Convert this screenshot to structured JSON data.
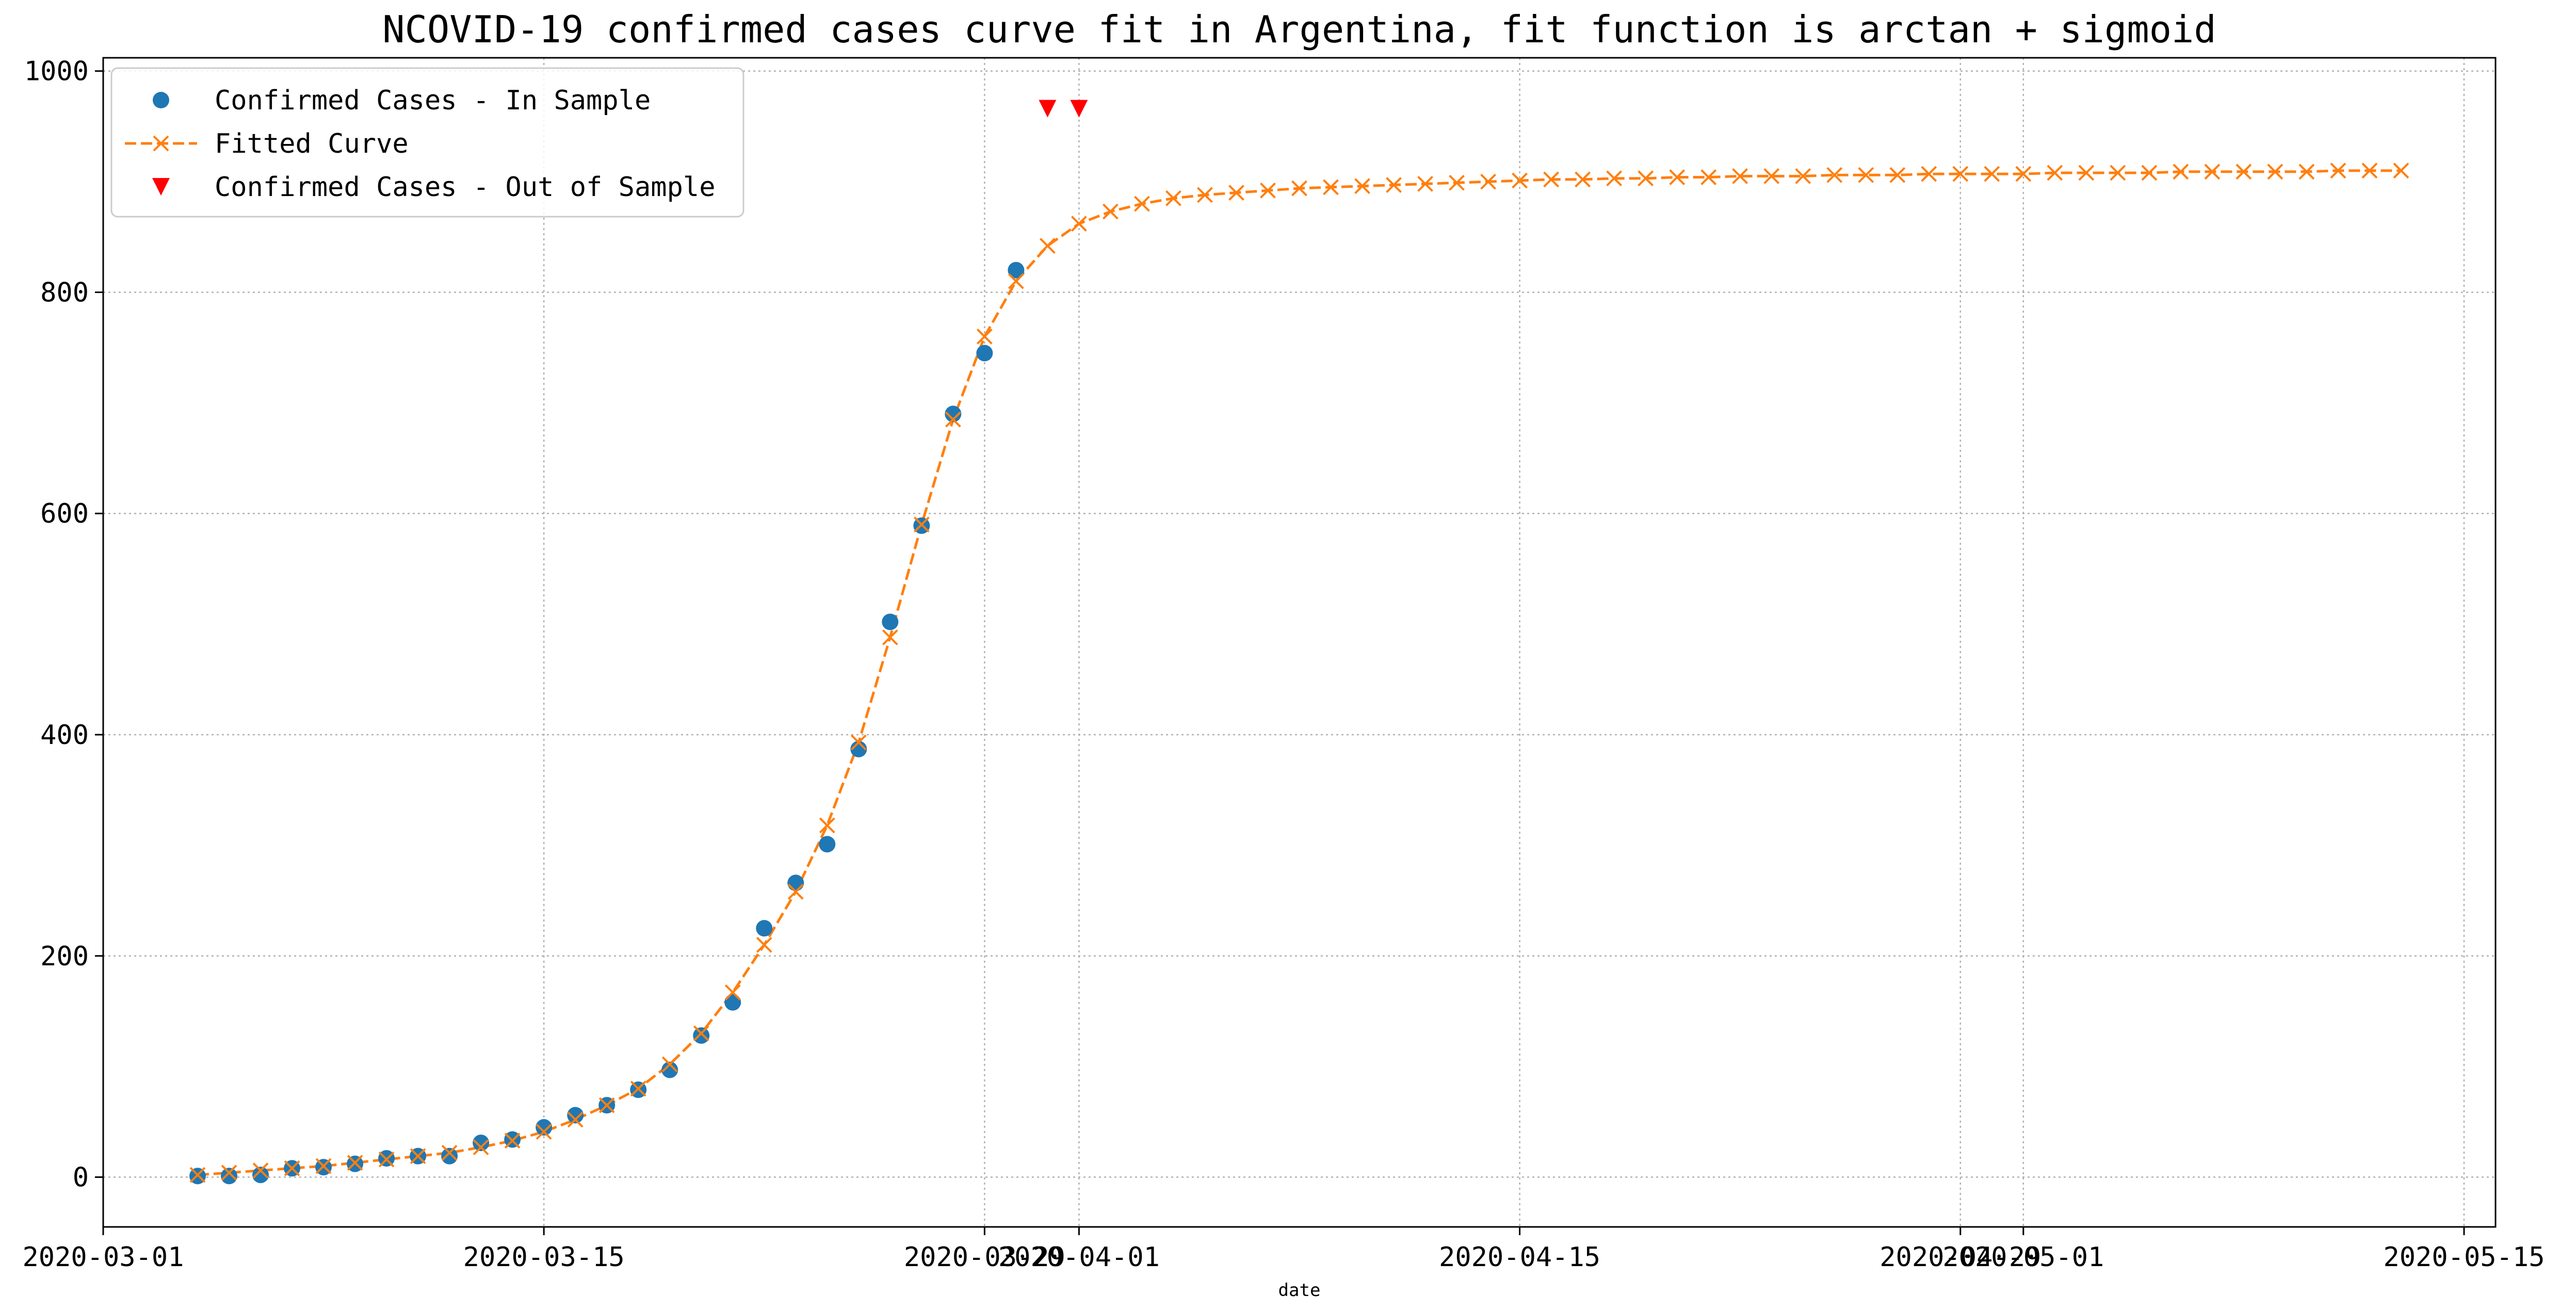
{
  "colors": {
    "in_sample": "#1f77b4",
    "fitted": "#ff7f0e",
    "out_of_sample": "#ff0000",
    "grid": "#b0b0b0",
    "axes": "#000000"
  },
  "chart_data": {
    "type": "scatter",
    "title": "NCOVID-19 confirmed cases curve fit in Argentina, fit function is arctan + sigmoid",
    "xlabel": "date",
    "ylabel": "",
    "x_axis_type": "date",
    "xlim": [
      "2020-03-01",
      "2020-05-16"
    ],
    "ylim": [
      -45,
      1012
    ],
    "grid": true,
    "legend_position": "upper-left",
    "x_ticks": [
      "2020-03-01",
      "2020-03-15",
      "2020-03-29",
      "2020-04-01",
      "2020-04-15",
      "2020-04-29",
      "2020-05-01",
      "2020-05-15"
    ],
    "x_tick_labels": [
      "2020-03-01",
      "2020-03-15",
      "2020-03-29",
      "2020-04-01",
      "2020-04-15",
      "2020-04-29",
      "2020-05-01",
      "2020-05-15"
    ],
    "y_ticks": [
      0,
      200,
      400,
      600,
      800,
      1000
    ],
    "y_tick_labels": [
      "0",
      "200",
      "400",
      "600",
      "800",
      "1000"
    ],
    "series": [
      {
        "name": "Confirmed Cases - In Sample",
        "marker": "circle",
        "color": "#1f77b4",
        "x": [
          "2020-03-04",
          "2020-03-05",
          "2020-03-06",
          "2020-03-07",
          "2020-03-08",
          "2020-03-09",
          "2020-03-10",
          "2020-03-11",
          "2020-03-12",
          "2020-03-13",
          "2020-03-14",
          "2020-03-15",
          "2020-03-16",
          "2020-03-17",
          "2020-03-18",
          "2020-03-19",
          "2020-03-20",
          "2020-03-21",
          "2020-03-22",
          "2020-03-23",
          "2020-03-24",
          "2020-03-25",
          "2020-03-26",
          "2020-03-27",
          "2020-03-28",
          "2020-03-29",
          "2020-03-30",
          "2020-03-31"
        ],
        "y": [
          1,
          1,
          2,
          8,
          9,
          12,
          17,
          19,
          19,
          31,
          34,
          45,
          56,
          65,
          79,
          97,
          128,
          158,
          225,
          266,
          301,
          387,
          502,
          589,
          690,
          745,
          820,
          null
        ]
      },
      {
        "name": "Fitted Curve",
        "marker": "x",
        "line_style": "dashed",
        "color": "#ff7f0e",
        "x": [
          "2020-03-04",
          "2020-03-05",
          "2020-03-06",
          "2020-03-07",
          "2020-03-08",
          "2020-03-09",
          "2020-03-10",
          "2020-03-11",
          "2020-03-12",
          "2020-03-13",
          "2020-03-14",
          "2020-03-15",
          "2020-03-16",
          "2020-03-17",
          "2020-03-18",
          "2020-03-19",
          "2020-03-20",
          "2020-03-21",
          "2020-03-22",
          "2020-03-23",
          "2020-03-24",
          "2020-03-25",
          "2020-03-26",
          "2020-03-27",
          "2020-03-28",
          "2020-03-29",
          "2020-03-30",
          "2020-03-31",
          "2020-04-01",
          "2020-04-02",
          "2020-04-03",
          "2020-04-04",
          "2020-04-05",
          "2020-04-06",
          "2020-04-07",
          "2020-04-08",
          "2020-04-09",
          "2020-04-10",
          "2020-04-11",
          "2020-04-12",
          "2020-04-13",
          "2020-04-14",
          "2020-04-15",
          "2020-04-16",
          "2020-04-17",
          "2020-04-18",
          "2020-04-19",
          "2020-04-20",
          "2020-04-21",
          "2020-04-22",
          "2020-04-23",
          "2020-04-24",
          "2020-04-25",
          "2020-04-26",
          "2020-04-27",
          "2020-04-28",
          "2020-04-29",
          "2020-04-30",
          "2020-05-01",
          "2020-05-02",
          "2020-05-03",
          "2020-05-04",
          "2020-05-05",
          "2020-05-06",
          "2020-05-07",
          "2020-05-08",
          "2020-05-09",
          "2020-05-10",
          "2020-05-11",
          "2020-05-12",
          "2020-05-13"
        ],
        "y": [
          2,
          4,
          6,
          8,
          10,
          13,
          16,
          19,
          22,
          27,
          33,
          41,
          52,
          65,
          80,
          102,
          130,
          167,
          210,
          258,
          318,
          393,
          488,
          590,
          685,
          760,
          810,
          842,
          862,
          873,
          880,
          885,
          888,
          890,
          892,
          894,
          895,
          896,
          897,
          898,
          899,
          900,
          901,
          902,
          902,
          903,
          903,
          904,
          904,
          905,
          905,
          905,
          906,
          906,
          906,
          907,
          907,
          907,
          907,
          908,
          908,
          908,
          908,
          909,
          909,
          909,
          909,
          909,
          910,
          910,
          910
        ]
      },
      {
        "name": "Confirmed Cases - Out of Sample",
        "marker": "triangle-down",
        "color": "#ff0000",
        "x": [
          "2020-03-31",
          "2020-04-01"
        ],
        "y": [
          966,
          966
        ]
      }
    ]
  }
}
